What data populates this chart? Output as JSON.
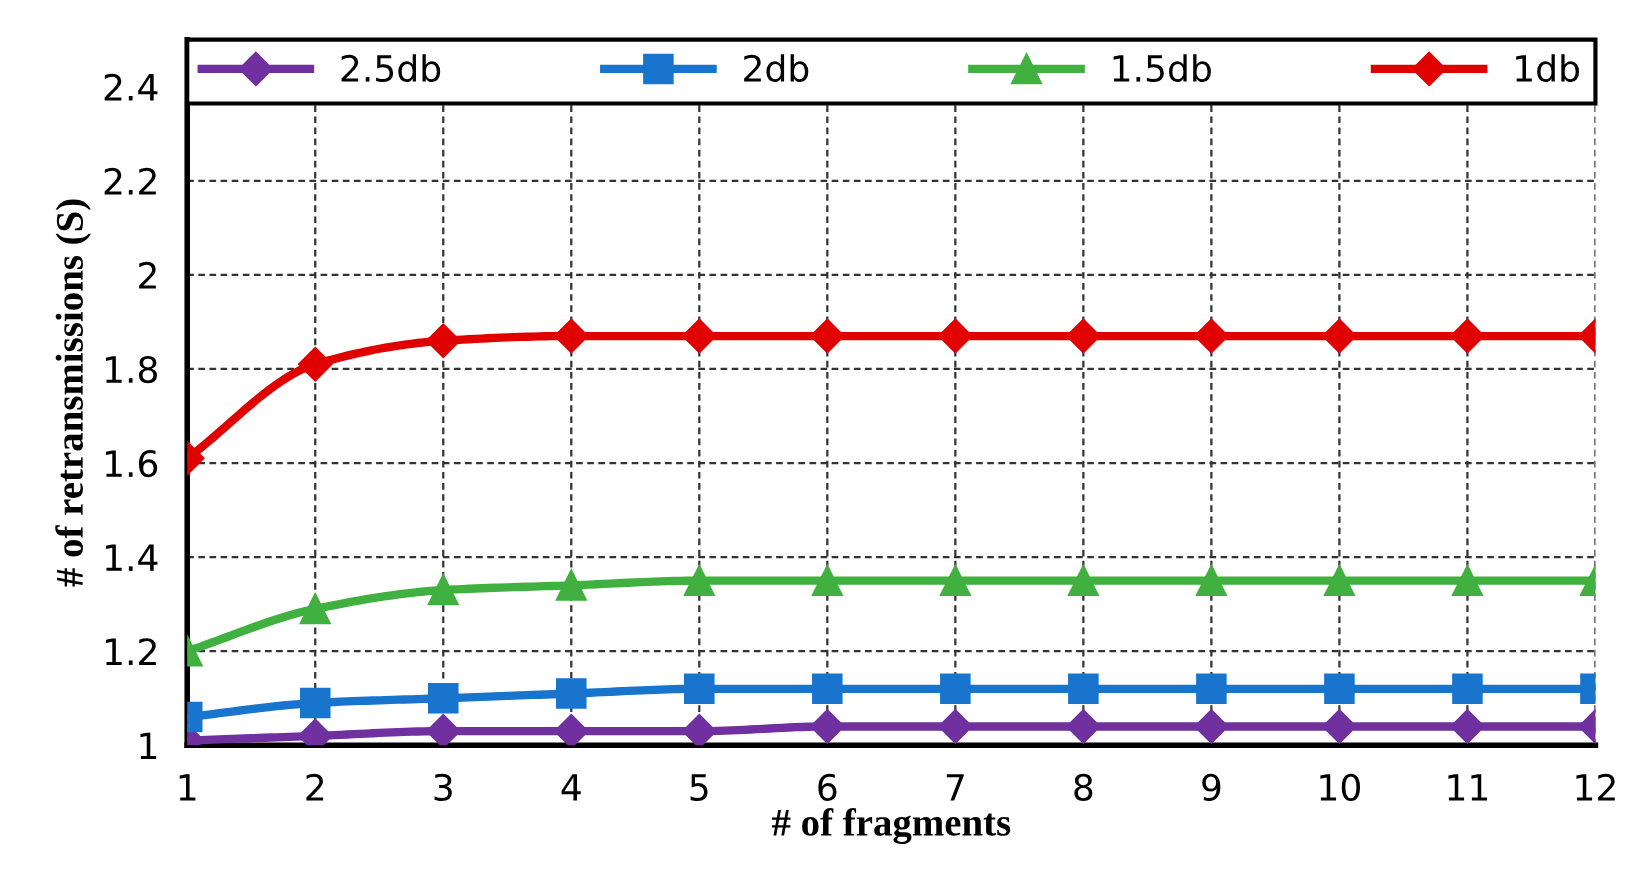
{
  "chart_data": {
    "type": "line",
    "xlabel": "# of fragments",
    "ylabel": "# of retransmissions (S)",
    "x": [
      1,
      2,
      3,
      4,
      5,
      6,
      7,
      8,
      9,
      10,
      11,
      12
    ],
    "xlim": [
      1,
      12
    ],
    "xticks": [
      1,
      2,
      3,
      4,
      5,
      6,
      7,
      8,
      9,
      10,
      11,
      12
    ],
    "ylim": [
      1,
      2.5
    ],
    "yticks": [
      1,
      1.2,
      1.4,
      1.6,
      1.8,
      2,
      2.2,
      2.4
    ],
    "grid": true,
    "legend": "top",
    "line_style": "solid",
    "series": [
      {
        "name": "2.5db",
        "color": "#7030a0",
        "marker": "diamond",
        "values": [
          1.01,
          1.02,
          1.03,
          1.03,
          1.03,
          1.04,
          1.04,
          1.04,
          1.04,
          1.04,
          1.04,
          1.04
        ]
      },
      {
        "name": "2db",
        "color": "#1874cd",
        "marker": "square",
        "values": [
          1.06,
          1.09,
          1.1,
          1.11,
          1.12,
          1.12,
          1.12,
          1.12,
          1.12,
          1.12,
          1.12,
          1.12
        ]
      },
      {
        "name": "1.5db",
        "color": "#40b040",
        "marker": "triangle",
        "values": [
          1.2,
          1.29,
          1.33,
          1.34,
          1.35,
          1.35,
          1.35,
          1.35,
          1.35,
          1.35,
          1.35,
          1.35
        ]
      },
      {
        "name": "1db",
        "color": "#e00000",
        "marker": "diamond",
        "values": [
          1.61,
          1.81,
          1.86,
          1.87,
          1.87,
          1.87,
          1.87,
          1.87,
          1.87,
          1.87,
          1.87,
          1.87
        ]
      }
    ]
  }
}
